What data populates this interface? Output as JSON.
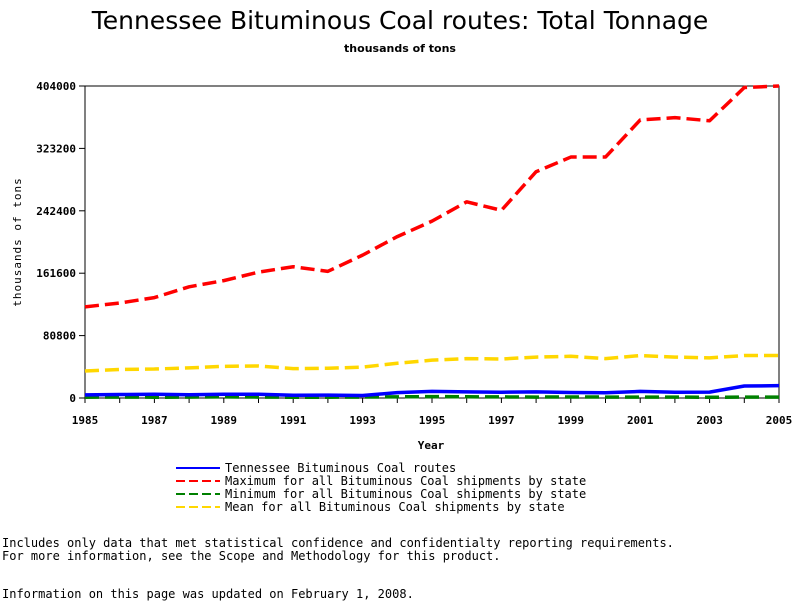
{
  "title": "Tennessee Bituminous Coal routes: Total Tonnage",
  "subtitle": "thousands of tons",
  "notes": {
    "line1": "Includes only data that met statistical confidence and confidentialty reporting requirements.",
    "line2": "For more information, see the Scope and Methodology for this product.",
    "line3": "Information on this page was updated on February 1, 2008."
  },
  "chart_data": {
    "type": "line",
    "title": "Tennessee Bituminous Coal routes: Total Tonnage",
    "subtitle": "thousands of tons",
    "xlabel": "Year",
    "ylabel": "thousands of tons",
    "x": [
      1985,
      1986,
      1987,
      1988,
      1989,
      1990,
      1991,
      1992,
      1993,
      1994,
      1995,
      1996,
      1997,
      1998,
      1999,
      2000,
      2001,
      2002,
      2003,
      2004,
      2005
    ],
    "xlim": [
      1985,
      2005
    ],
    "ylim": [
      0,
      404000
    ],
    "x_ticks": [
      "1985",
      "1987",
      "1989",
      "1991",
      "1993",
      "1995",
      "1997",
      "1999",
      "2001",
      "2003",
      "2005"
    ],
    "y_ticks": [
      "0",
      "80800",
      "161600",
      "242400",
      "323200",
      "404000"
    ],
    "grid": false,
    "legend_position": "bottom",
    "series": [
      {
        "name": "Tennessee Bituminous Coal routes",
        "color": "#0000ff",
        "style": "solid",
        "values": [
          4000,
          4500,
          4800,
          4200,
          4900,
          4800,
          3500,
          3700,
          3200,
          7000,
          8500,
          8000,
          7500,
          8000,
          7200,
          6800,
          8500,
          7500,
          7600,
          15500,
          16000
        ]
      },
      {
        "name": "Maximum for all Bituminous Coal shipments by state",
        "color": "#ff0000",
        "style": "dashed",
        "values": [
          118000,
          123000,
          130000,
          144000,
          152000,
          163000,
          170000,
          164000,
          185000,
          209000,
          229000,
          254000,
          243000,
          293000,
          312000,
          312000,
          360000,
          363000,
          359000,
          402000,
          404000
        ]
      },
      {
        "name": "Minimum for all Bituminous Coal shipments by state",
        "color": "#008000",
        "style": "dashed",
        "values": [
          1000,
          1200,
          1000,
          1100,
          1500,
          1200,
          1000,
          1000,
          1200,
          1500,
          1800,
          1600,
          1400,
          1200,
          1300,
          1200,
          1200,
          1100,
          1000,
          1100,
          1200
        ]
      },
      {
        "name": "Mean for all Bituminous Coal shipments by state",
        "color": "#ffd700",
        "style": "dashed",
        "values": [
          35000,
          37000,
          37500,
          39000,
          41000,
          41500,
          38000,
          38500,
          40000,
          45000,
          49000,
          51000,
          50500,
          53000,
          54000,
          51000,
          55000,
          53000,
          52000,
          55000,
          55000
        ]
      }
    ]
  }
}
